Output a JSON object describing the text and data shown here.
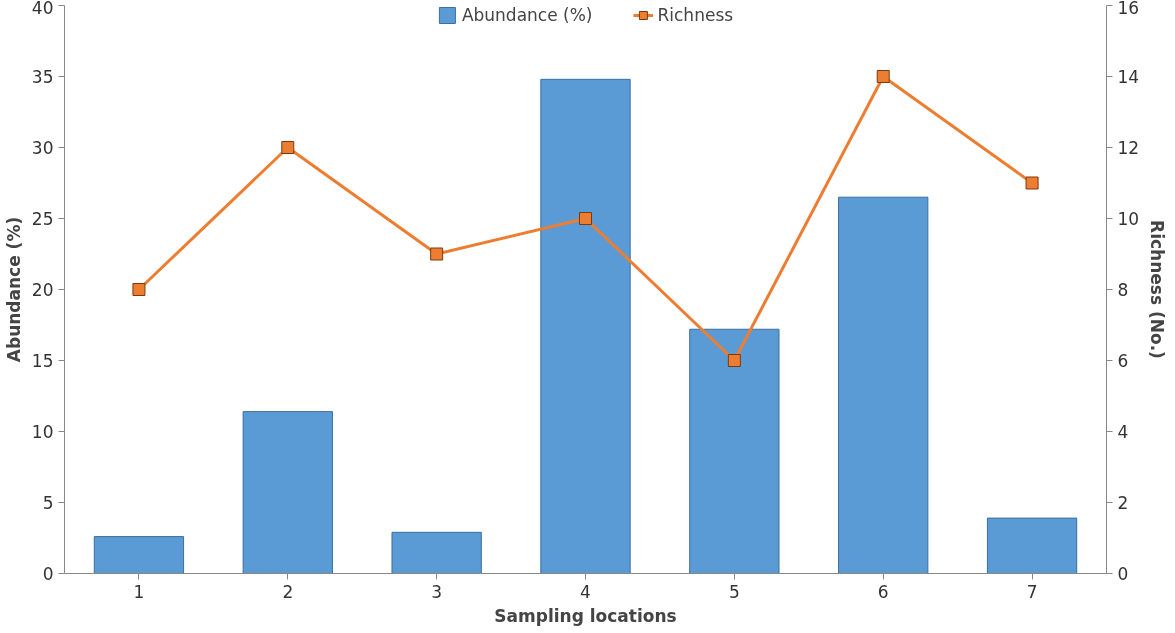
{
  "chart_data": {
    "type": "bar",
    "xlabel": "Sampling locations",
    "ylabel": "Abundance (%)",
    "y2label": "Richness (No.)",
    "categories": [
      "1",
      "2",
      "3",
      "4",
      "5",
      "6",
      "7"
    ],
    "series": [
      {
        "name": "Abundance (%)",
        "color": "#5b9bd5",
        "values": [
          2.6,
          11.4,
          2.9,
          34.8,
          17.2,
          26.5,
          3.9
        ]
      },
      {
        "name": "Richness",
        "type": "line",
        "axis": "y2",
        "color": "#ed7d31",
        "values": [
          8,
          12,
          9,
          10,
          6,
          14,
          11
        ]
      }
    ],
    "ylim": [
      0,
      40
    ],
    "yticks": [
      0,
      5,
      10,
      15,
      20,
      25,
      30,
      35,
      40
    ],
    "y2lim": [
      0,
      16
    ],
    "y2ticks": [
      0,
      2,
      4,
      6,
      8,
      10,
      12,
      14,
      16
    ],
    "grid": false,
    "legend": "top",
    "marker": "square",
    "line_style": "solid"
  }
}
